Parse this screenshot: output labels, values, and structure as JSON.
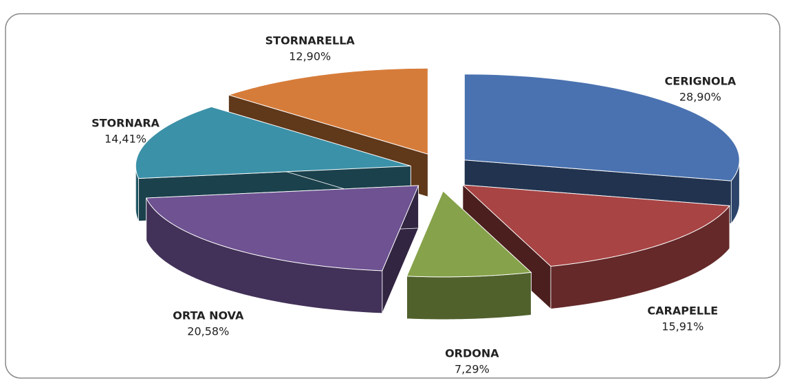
{
  "chart_data": {
    "type": "pie",
    "categories": [
      "CERIGNOLA",
      "CARAPELLE",
      "ORDONA",
      "ORTA NOVA",
      "STORNARA",
      "STORNARELLA"
    ],
    "values": [
      28.9,
      15.91,
      7.29,
      20.58,
      14.41,
      12.9
    ],
    "value_labels": [
      "28,90%",
      "15,91%",
      "7,29%",
      "20,58%",
      "14,41%",
      "12,90%"
    ],
    "colors": [
      "#4a72b0",
      "#a84444",
      "#86a24a",
      "#6e5292",
      "#3b91a8",
      "#d67c3a"
    ]
  }
}
